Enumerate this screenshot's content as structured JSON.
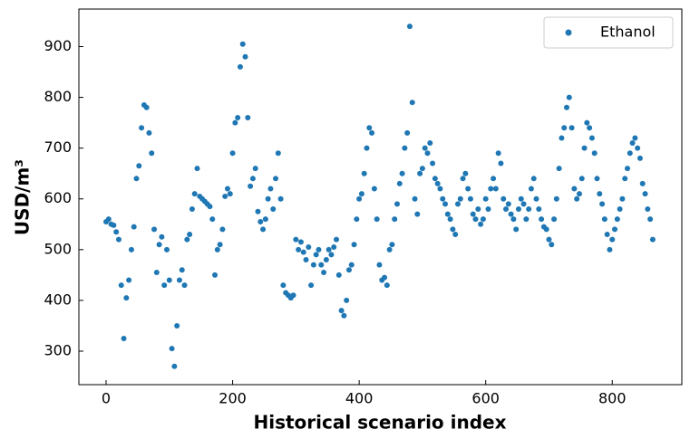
{
  "chart_data": {
    "type": "scatter",
    "xlabel": "Historical scenario index",
    "ylabel": "USD/m³",
    "xlim": [
      -43,
      910
    ],
    "ylim": [
      234,
      974
    ],
    "xticks": [
      0,
      200,
      400,
      600,
      800
    ],
    "yticks": [
      300,
      400,
      500,
      600,
      700,
      800,
      900
    ],
    "legend": "upper right",
    "series": [
      {
        "name": "Ethanol",
        "color": "#1f77b4",
        "x": [
          0,
          4,
          8,
          12,
          16,
          20,
          24,
          28,
          32,
          36,
          40,
          44,
          48,
          52,
          56,
          60,
          64,
          68,
          72,
          76,
          80,
          84,
          88,
          92,
          96,
          100,
          104,
          108,
          112,
          116,
          120,
          124,
          128,
          132,
          136,
          140,
          144,
          148,
          152,
          156,
          160,
          164,
          168,
          172,
          176,
          180,
          184,
          188,
          192,
          196,
          200,
          204,
          208,
          212,
          216,
          220,
          224,
          228,
          232,
          236,
          240,
          244,
          248,
          252,
          256,
          260,
          264,
          268,
          272,
          276,
          280,
          284,
          288,
          292,
          296,
          300,
          304,
          308,
          312,
          316,
          320,
          324,
          328,
          332,
          336,
          340,
          344,
          348,
          352,
          356,
          360,
          364,
          368,
          372,
          376,
          380,
          384,
          388,
          392,
          396,
          400,
          404,
          408,
          412,
          416,
          420,
          424,
          428,
          432,
          436,
          440,
          444,
          448,
          452,
          456,
          460,
          464,
          468,
          472,
          476,
          480,
          484,
          488,
          492,
          496,
          500,
          504,
          508,
          512,
          516,
          520,
          524,
          528,
          532,
          536,
          540,
          544,
          548,
          552,
          556,
          560,
          564,
          568,
          572,
          576,
          580,
          584,
          588,
          592,
          596,
          600,
          604,
          608,
          612,
          616,
          620,
          624,
          628,
          632,
          636,
          640,
          644,
          648,
          652,
          656,
          660,
          664,
          668,
          672,
          676,
          680,
          684,
          688,
          692,
          696,
          700,
          704,
          708,
          712,
          716,
          720,
          724,
          728,
          732,
          736,
          740,
          744,
          748,
          752,
          756,
          760,
          764,
          768,
          772,
          776,
          780,
          784,
          788,
          792,
          796,
          800,
          804,
          808,
          812,
          816,
          820,
          824,
          828,
          832,
          836,
          840,
          844,
          848,
          852,
          856,
          860,
          864
        ],
        "values": [
          555,
          560,
          550,
          548,
          535,
          520,
          430,
          325,
          405,
          440,
          500,
          545,
          640,
          665,
          740,
          785,
          780,
          730,
          690,
          540,
          455,
          510,
          525,
          430,
          500,
          440,
          305,
          270,
          350,
          440,
          460,
          430,
          520,
          530,
          580,
          610,
          660,
          605,
          600,
          595,
          590,
          585,
          560,
          450,
          500,
          510,
          540,
          605,
          620,
          610,
          690,
          750,
          760,
          860,
          905,
          880,
          760,
          625,
          640,
          660,
          575,
          555,
          540,
          560,
          600,
          620,
          580,
          640,
          690,
          600,
          430,
          415,
          410,
          405,
          410,
          520,
          500,
          515,
          495,
          480,
          505,
          430,
          470,
          490,
          500,
          470,
          455,
          480,
          500,
          490,
          505,
          520,
          450,
          380,
          370,
          400,
          460,
          470,
          510,
          560,
          600,
          610,
          650,
          700,
          740,
          730,
          620,
          560,
          470,
          440,
          445,
          430,
          500,
          510,
          560,
          590,
          630,
          650,
          700,
          730,
          940,
          790,
          600,
          570,
          650,
          660,
          700,
          690,
          710,
          670,
          640,
          630,
          620,
          600,
          590,
          570,
          560,
          540,
          530,
          590,
          600,
          640,
          650,
          620,
          600,
          570,
          560,
          580,
          550,
          560,
          600,
          580,
          620,
          640,
          620,
          690,
          670,
          600,
          580,
          590,
          570,
          560,
          540,
          580,
          600,
          590,
          560,
          580,
          620,
          640,
          600,
          580,
          560,
          545,
          540,
          520,
          510,
          560,
          600,
          660,
          720,
          740,
          780,
          800,
          740,
          620,
          600,
          610,
          640,
          700,
          750,
          740,
          720,
          690,
          640,
          610,
          590,
          560,
          530,
          500,
          520,
          540,
          560,
          580,
          600,
          640,
          660,
          690,
          710,
          720,
          700,
          680,
          630,
          610,
          580,
          560,
          520
        ]
      }
    ]
  }
}
